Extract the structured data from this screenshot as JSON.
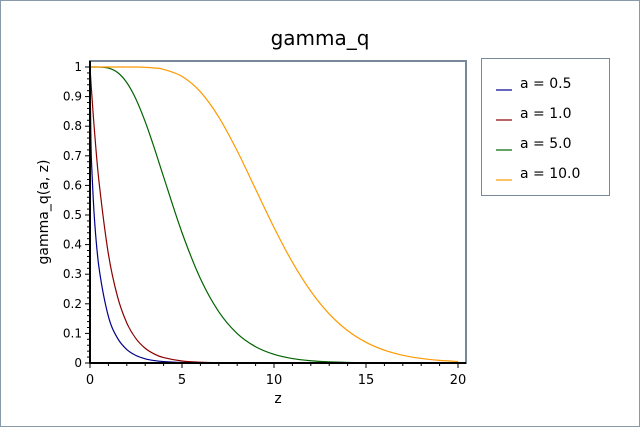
{
  "chart_data": {
    "type": "line",
    "title": "gamma_q",
    "xlabel": "z",
    "ylabel": "gamma_q(a, z)",
    "xlim": [
      0,
      20
    ],
    "ylim": [
      0,
      1
    ],
    "xticks": [
      "0",
      "5",
      "10",
      "15",
      "20"
    ],
    "yticks": [
      "0",
      "0.1",
      "0.2",
      "0.3",
      "0.4",
      "0.5",
      "0.6",
      "0.7",
      "0.8",
      "0.9",
      "1"
    ],
    "grid": false,
    "legend_position": "right",
    "x": [
      0,
      0.05,
      0.1,
      0.25,
      0.5,
      1,
      1.5,
      2,
      2.5,
      3,
      3.5,
      4,
      5,
      6,
      7,
      8,
      9,
      10,
      11,
      12,
      13,
      14,
      15,
      16,
      17,
      18,
      19,
      20
    ],
    "series": [
      {
        "name": "a = 0.5",
        "color": "#00008b",
        "values": [
          1,
          0.7518,
          0.6547,
          0.4795,
          0.3173,
          0.1573,
          0.0833,
          0.0455,
          0.0253,
          0.0143,
          0.0082,
          0.0047,
          0.0016,
          0.0005,
          0.0002,
          0.0001,
          0,
          0,
          0,
          0,
          0,
          0,
          0,
          0,
          0,
          0,
          0,
          0
        ]
      },
      {
        "name": "a = 1.0",
        "color": "#8b0000",
        "values": [
          1,
          0.9512,
          0.9048,
          0.7788,
          0.6065,
          0.3679,
          0.2231,
          0.1353,
          0.0821,
          0.0498,
          0.0302,
          0.0183,
          0.0067,
          0.0025,
          0.0009,
          0.0003,
          0.0001,
          0,
          0,
          0,
          0,
          0,
          0,
          0,
          0,
          0,
          0,
          0
        ]
      },
      {
        "name": "a = 5.0",
        "color": "#006400",
        "values": [
          1,
          1,
          1,
          1,
          0.9998,
          0.9963,
          0.9814,
          0.9473,
          0.8912,
          0.8153,
          0.7254,
          0.6288,
          0.4405,
          0.2851,
          0.173,
          0.0996,
          0.055,
          0.0293,
          0.0151,
          0.0076,
          0.0037,
          0.0018,
          0.0009,
          0.0004,
          0.0002,
          0.0001,
          0,
          0
        ]
      },
      {
        "name": "a = 10.0",
        "color": "#ff9900",
        "values": [
          1,
          1,
          1,
          1,
          1,
          1,
          1,
          1,
          0.9999,
          0.9989,
          0.9967,
          0.9919,
          0.9682,
          0.9161,
          0.8305,
          0.7166,
          0.5874,
          0.4579,
          0.3405,
          0.2424,
          0.1658,
          0.1094,
          0.0699,
          0.0433,
          0.0261,
          0.0154,
          0.0089,
          0.005
        ]
      }
    ]
  }
}
